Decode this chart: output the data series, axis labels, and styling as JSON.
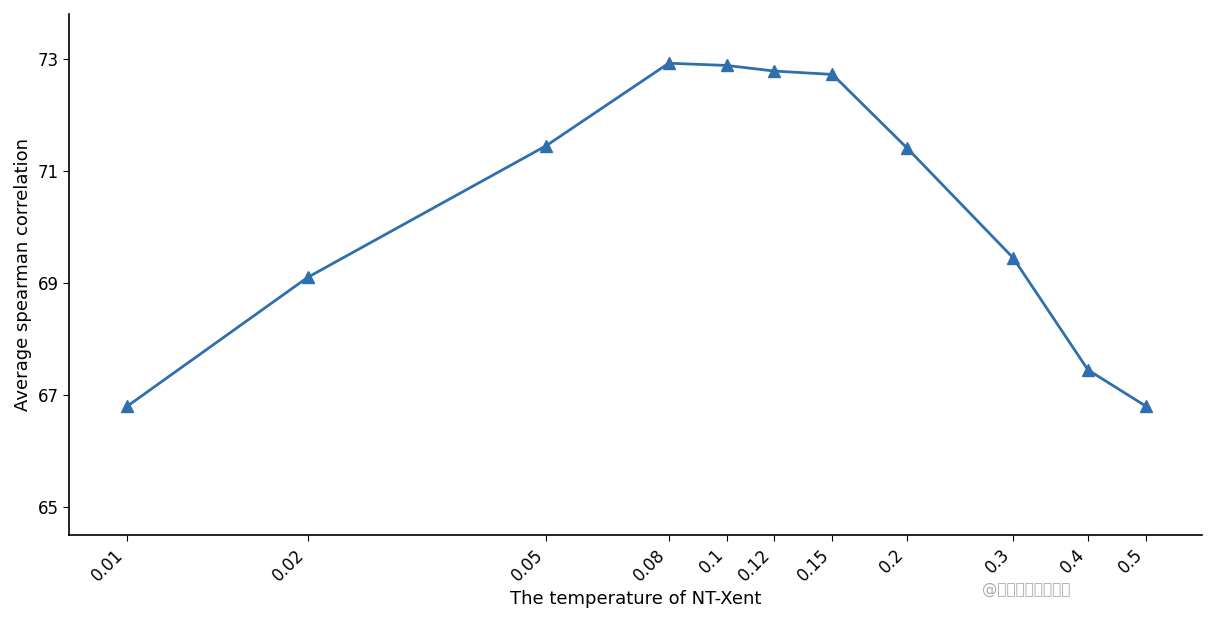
{
  "x": [
    0.01,
    0.02,
    0.05,
    0.08,
    0.1,
    0.12,
    0.15,
    0.2,
    0.3,
    0.4,
    0.5
  ],
  "y": [
    66.8,
    69.1,
    71.45,
    72.92,
    72.88,
    72.78,
    72.72,
    71.4,
    69.45,
    67.45,
    66.8
  ],
  "xticks": [
    0.01,
    0.02,
    0.05,
    0.08,
    0.1,
    0.12,
    0.15,
    0.2,
    0.3,
    0.4,
    0.5
  ],
  "xtick_labels": [
    "0.01",
    "0.02",
    "0.05",
    "0.08",
    "0.1",
    "0.12",
    "0.15",
    "0.2",
    "0.3",
    "0.4",
    "0.5"
  ],
  "yticks": [
    65,
    67,
    69,
    71,
    73
  ],
  "ytick_labels": [
    "65",
    "67",
    "69",
    "71",
    "73"
  ],
  "ylim": [
    64.5,
    73.8
  ],
  "xlim": [
    0.008,
    0.62
  ],
  "xlabel": "The temperature of NT-Xent",
  "ylabel": "Average spearman correlation",
  "line_color": "#2f6fad",
  "marker": "^",
  "marker_size": 8,
  "linewidth": 2.0,
  "background_color": "#ffffff",
  "watermark": "@稀土掘金技术社区",
  "watermark_color": "#aaaaaa",
  "watermark_fontsize": 11
}
